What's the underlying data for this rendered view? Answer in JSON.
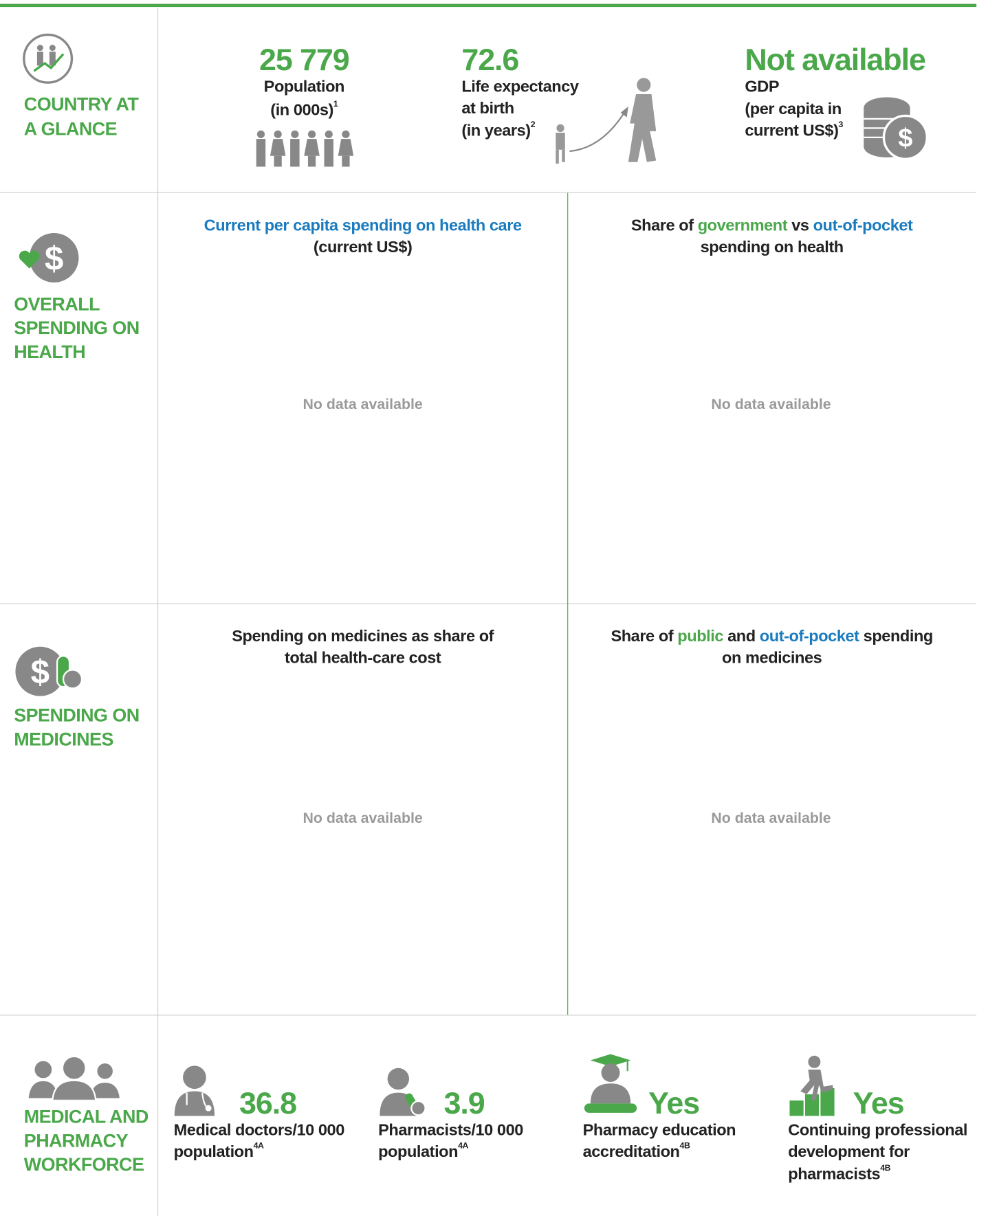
{
  "country_at_a_glance": {
    "heading": [
      "COUNTRY AT",
      "A GLANCE"
    ],
    "population": {
      "value": "25 779",
      "label": [
        "Population",
        "(in 000s)"
      ],
      "note": "1"
    },
    "life_expectancy": {
      "value": "72.6",
      "label": [
        "Life expectancy",
        "at birth",
        "(in years)"
      ],
      "note": "2"
    },
    "gdp": {
      "value": "Not available",
      "label": [
        "GDP",
        "(per capita in",
        "current US$)"
      ],
      "note": "3"
    }
  },
  "overall_spending": {
    "heading": [
      "OVERALL",
      "SPENDING ON",
      "HEALTH"
    ],
    "per_capita": {
      "title": [
        "Current per capita spending on health care",
        "(current US$)"
      ],
      "message": "No data available"
    },
    "share": {
      "title": [
        "Share of ",
        "government",
        " vs ",
        "out-of-pocket",
        "spending on health"
      ],
      "message": "No data available"
    }
  },
  "spending_on_medicines": {
    "heading": [
      "SPENDING ON",
      "MEDICINES"
    ],
    "share_of_total": {
      "title": [
        "Spending on medicines as share of",
        "total health-care cost"
      ],
      "message": "No data available"
    },
    "public_vs_oop": {
      "title": [
        "Share of ",
        "public",
        " and ",
        "out-of-pocket",
        " spending",
        "on medicines"
      ],
      "message": "No data available"
    }
  },
  "workforce": {
    "heading": [
      "MEDICAL AND",
      "PHARMACY",
      "WORKFORCE"
    ],
    "items": [
      {
        "value": "36.8",
        "label": [
          "Medical doctors/10 000",
          "population"
        ],
        "note": "4A"
      },
      {
        "value": "3.9",
        "label": [
          "Pharmacists/10 000",
          "population"
        ],
        "note": "4A"
      },
      {
        "value": "Yes",
        "label": [
          "Pharmacy education",
          "accreditation"
        ],
        "note": "4B"
      },
      {
        "value": "Yes",
        "label": [
          "Continuing professional",
          "development for",
          "pharmacists"
        ],
        "note": "4B"
      }
    ]
  }
}
